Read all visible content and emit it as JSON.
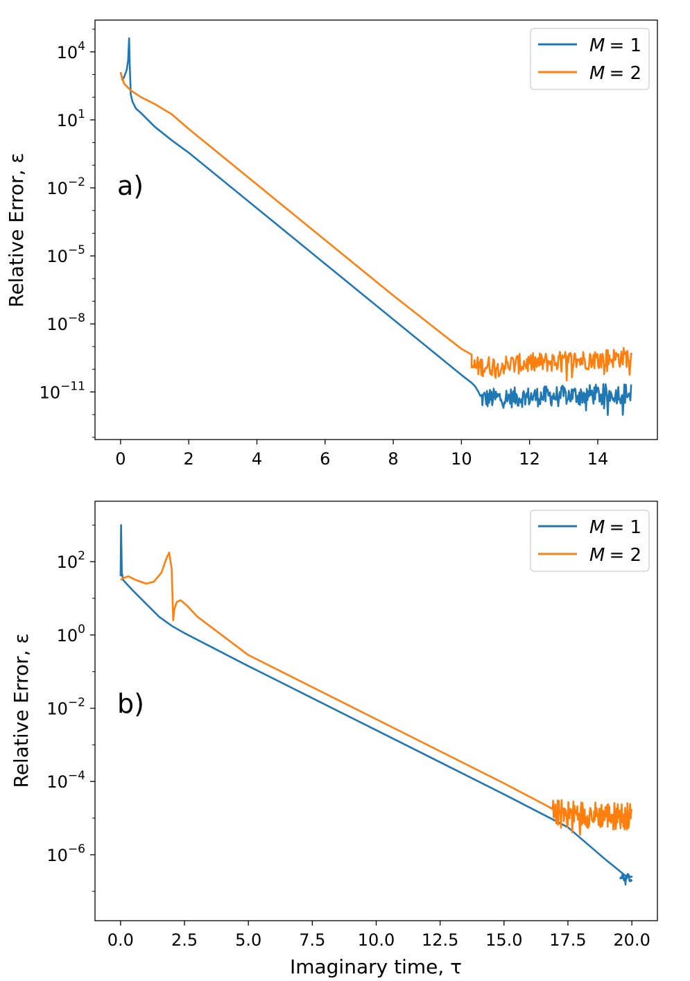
{
  "chart_data": [
    {
      "type": "line",
      "panel_label": "a)",
      "title": "",
      "ylabel": "Relative Error, ε",
      "xlabel": "",
      "yscale": "log",
      "xlim": [
        -0.75,
        15.75
      ],
      "ylim_log10": [
        -13.1,
        5.4
      ],
      "xticks": [
        0,
        2,
        4,
        6,
        8,
        10,
        12,
        14
      ],
      "xtick_labels": [
        "0",
        "2",
        "4",
        "6",
        "8",
        "10",
        "12",
        "14"
      ],
      "yticks_log10": [
        4,
        1,
        -2,
        -5,
        -8,
        -11
      ],
      "ytick_exponents": [
        "4",
        "1",
        "−2",
        "−5",
        "−8",
        "−11"
      ],
      "ytick_base": "10",
      "legend_position": "upper right",
      "series": [
        {
          "name": "M = 1",
          "legend_var": "M",
          "legend_rest": "= 1",
          "color": "#1f77b4",
          "x": [
            0,
            0.06,
            0.12,
            0.18,
            0.22,
            0.25,
            0.27,
            0.3,
            0.35,
            0.45,
            0.6,
            1.0,
            1.5,
            2.0,
            4.0,
            6.0,
            8.0,
            10.0,
            10.3,
            10.4,
            10.5
          ],
          "log10_y": [
            3.1,
            2.75,
            2.95,
            3.2,
            3.6,
            4.6,
            3.4,
            2.1,
            1.8,
            1.5,
            1.3,
            0.7,
            0.1,
            -0.45,
            -2.9,
            -5.35,
            -7.8,
            -10.25,
            -10.6,
            -10.75,
            -11.0
          ],
          "noise": {
            "x_start": 10.55,
            "x_end": 15.0,
            "log10_base_start": -11.3,
            "log10_base_end": -11.05,
            "amplitude": 0.9
          }
        },
        {
          "name": "M = 2",
          "legend_var": "M",
          "legend_rest": "= 2",
          "color": "#ff7f0e",
          "x": [
            0,
            0.1,
            0.3,
            0.6,
            1.0,
            1.5,
            2.0,
            4.0,
            6.0,
            8.0,
            9.7,
            10.0,
            10.3
          ],
          "log10_y": [
            3.1,
            2.6,
            2.3,
            2.0,
            1.7,
            1.25,
            0.6,
            -1.85,
            -4.3,
            -6.75,
            -8.75,
            -9.1,
            -9.35
          ],
          "noise": {
            "x_start": 10.3,
            "x_end": 15.0,
            "log10_base_start": -9.9,
            "log10_base_end": -9.45,
            "amplitude": 0.9
          }
        }
      ]
    },
    {
      "type": "line",
      "panel_label": "b)",
      "title": "",
      "ylabel": "Relative Error, ε",
      "xlabel": "Imaginary time, τ",
      "yscale": "log",
      "xlim": [
        -1.0,
        21.0
      ],
      "ylim_log10": [
        -7.8,
        3.65
      ],
      "xticks": [
        0,
        2.5,
        5,
        7.5,
        10,
        12.5,
        15,
        17.5,
        20
      ],
      "xtick_labels": [
        "0.0",
        "2.5",
        "5.0",
        "7.5",
        "10.0",
        "12.5",
        "15.0",
        "17.5",
        "20.0"
      ],
      "yticks_log10": [
        2,
        0,
        -2,
        -4,
        -6
      ],
      "ytick_exponents": [
        "2",
        "0",
        "−2",
        "−4",
        "−6"
      ],
      "ytick_base": "10",
      "legend_position": "upper right",
      "series": [
        {
          "name": "M = 1",
          "legend_var": "M",
          "legend_rest": "= 1",
          "color": "#1f77b4",
          "x": [
            0,
            0.02,
            0.05,
            0.1,
            0.5,
            1.0,
            1.5,
            2.0,
            2.5,
            5.0,
            10.0,
            15.0,
            17.5,
            19.0,
            19.8,
            20.0
          ],
          "log10_y": [
            1.6,
            3.0,
            1.7,
            1.5,
            1.2,
            0.85,
            0.5,
            0.25,
            0.05,
            -0.85,
            -2.6,
            -4.35,
            -5.25,
            -6.15,
            -6.6,
            -6.6
          ],
          "noise": {
            "x_start": 19.55,
            "x_end": 20.0,
            "log10_base_start": -6.55,
            "log10_base_end": -6.65,
            "amplitude": 0.2
          }
        },
        {
          "name": "M = 2",
          "legend_var": "M",
          "legend_rest": "= 2",
          "color": "#ff7f0e",
          "x": [
            0,
            0.1,
            0.3,
            0.6,
            1.0,
            1.3,
            1.6,
            1.8,
            1.9,
            2.0,
            2.06,
            2.1,
            2.2,
            2.35,
            2.6,
            3.0,
            5.0,
            10.0,
            15.0,
            16.5,
            16.9
          ],
          "log10_y": [
            1.5,
            1.55,
            1.6,
            1.5,
            1.4,
            1.45,
            1.7,
            2.1,
            2.25,
            1.8,
            0.4,
            0.7,
            0.9,
            0.95,
            0.8,
            0.5,
            -0.55,
            -2.3,
            -4.05,
            -4.6,
            -4.75
          ],
          "noise": {
            "x_start": 16.9,
            "x_end": 20.0,
            "log10_base_start": -4.85,
            "log10_base_end": -4.95,
            "amplitude": 0.75
          }
        }
      ]
    }
  ]
}
